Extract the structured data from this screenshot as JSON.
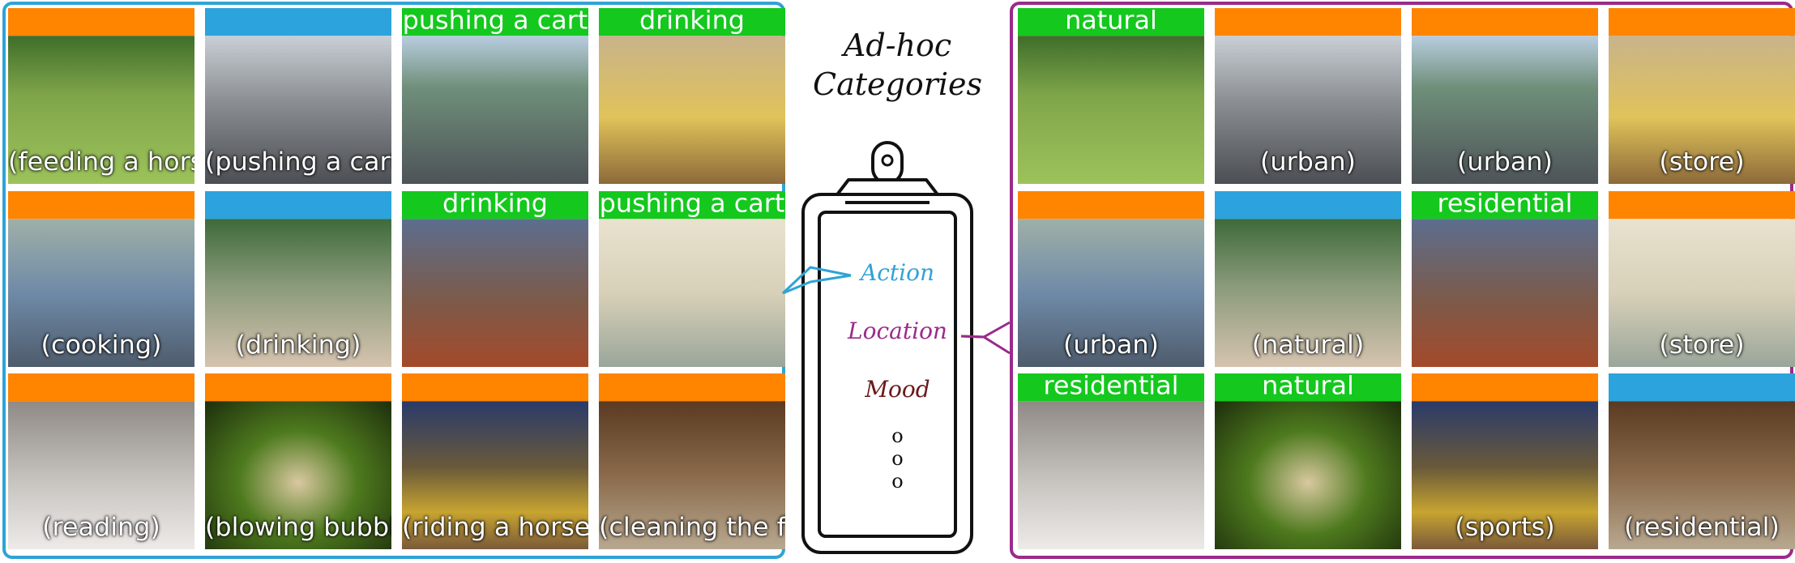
{
  "center": {
    "title_line1": "Ad-hoc",
    "title_line2": "Categories",
    "categories": [
      {
        "label": "Action",
        "color": "#2fa3d6"
      },
      {
        "label": "Location",
        "color": "#9b2a8a"
      },
      {
        "label": "Mood",
        "color": "#6b1a1a"
      }
    ],
    "ellipsis": [
      "o",
      "o",
      "o"
    ]
  },
  "left_panel": {
    "category": "Action",
    "border_color": "#2fa3d6",
    "tiles": [
      {
        "bar_text": "",
        "bar_color": "orange",
        "caption": "(feeding a horse)"
      },
      {
        "bar_text": "",
        "bar_color": "blue",
        "caption": "(pushing a cart)"
      },
      {
        "bar_text": "pushing a cart",
        "bar_color": "green",
        "caption": ""
      },
      {
        "bar_text": "drinking",
        "bar_color": "green",
        "caption": ""
      },
      {
        "bar_text": "",
        "bar_color": "orange",
        "caption": "(cooking)"
      },
      {
        "bar_text": "",
        "bar_color": "blue",
        "caption": "(drinking)"
      },
      {
        "bar_text": "drinking",
        "bar_color": "green",
        "caption": ""
      },
      {
        "bar_text": "pushing a cart",
        "bar_color": "green",
        "caption": ""
      },
      {
        "bar_text": "",
        "bar_color": "orange",
        "caption": "(reading)"
      },
      {
        "bar_text": "",
        "bar_color": "orange",
        "caption": "(blowing bubbles)"
      },
      {
        "bar_text": "",
        "bar_color": "orange",
        "caption": "(riding a horse)"
      },
      {
        "bar_text": "",
        "bar_color": "orange",
        "caption": "(cleaning the floor)"
      }
    ]
  },
  "right_panel": {
    "category": "Location",
    "border_color": "#9b2a8a",
    "tiles": [
      {
        "bar_text": "natural",
        "bar_color": "green",
        "caption": ""
      },
      {
        "bar_text": "",
        "bar_color": "orange",
        "caption": "(urban)"
      },
      {
        "bar_text": "",
        "bar_color": "orange",
        "caption": "(urban)"
      },
      {
        "bar_text": "",
        "bar_color": "orange",
        "caption": "(store)"
      },
      {
        "bar_text": "",
        "bar_color": "orange",
        "caption": "(urban)"
      },
      {
        "bar_text": "",
        "bar_color": "blue",
        "caption": "(natural)"
      },
      {
        "bar_text": "residential",
        "bar_color": "green",
        "caption": ""
      },
      {
        "bar_text": "",
        "bar_color": "orange",
        "caption": "(store)"
      },
      {
        "bar_text": "residential",
        "bar_color": "green",
        "caption": ""
      },
      {
        "bar_text": "natural",
        "bar_color": "green",
        "caption": ""
      },
      {
        "bar_text": "",
        "bar_color": "orange",
        "caption": "(sports)"
      },
      {
        "bar_text": "",
        "bar_color": "blue",
        "caption": "(residential)"
      }
    ]
  },
  "photos": [
    "horse",
    "street",
    "lot",
    "cafe",
    "grill",
    "drink",
    "baby",
    "store",
    "bed",
    "bubbles",
    "race",
    "floor"
  ]
}
